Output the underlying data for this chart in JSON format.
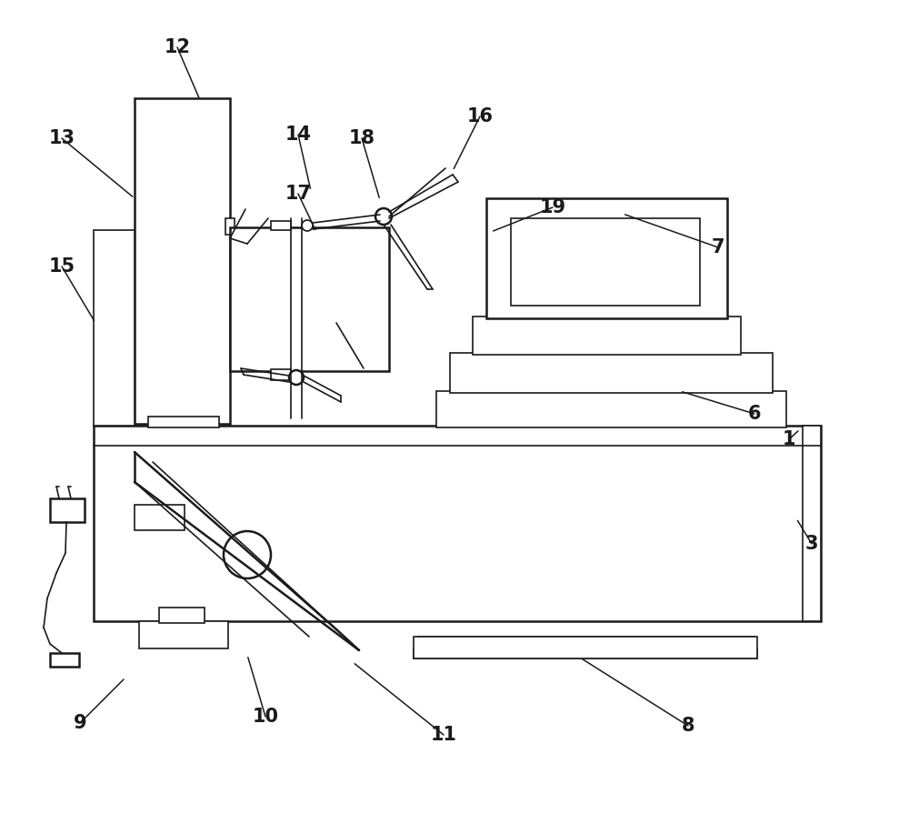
{
  "bg_color": "#ffffff",
  "lc": "#1a1a1a",
  "lw": 1.8,
  "lw_t": 1.2,
  "fig_w": 10.0,
  "fig_h": 9.06,
  "annotations": [
    [
      195,
      52,
      220,
      110,
      "12"
    ],
    [
      68,
      152,
      148,
      218,
      "13"
    ],
    [
      68,
      293,
      105,
      355,
      "15"
    ],
    [
      328,
      148,
      342,
      210,
      "14"
    ],
    [
      328,
      213,
      348,
      255,
      "17"
    ],
    [
      398,
      152,
      418,
      220,
      "18"
    ],
    [
      528,
      128,
      498,
      188,
      "16"
    ],
    [
      608,
      228,
      540,
      255,
      "19"
    ],
    [
      790,
      272,
      685,
      235,
      "7"
    ],
    [
      830,
      455,
      748,
      430,
      "6"
    ],
    [
      868,
      483,
      880,
      472,
      "1"
    ],
    [
      893,
      598,
      876,
      570,
      "3"
    ],
    [
      88,
      795,
      138,
      745,
      "9"
    ],
    [
      292,
      788,
      272,
      720,
      "10"
    ],
    [
      488,
      808,
      388,
      728,
      "11"
    ],
    [
      757,
      798,
      638,
      723,
      "8"
    ]
  ]
}
